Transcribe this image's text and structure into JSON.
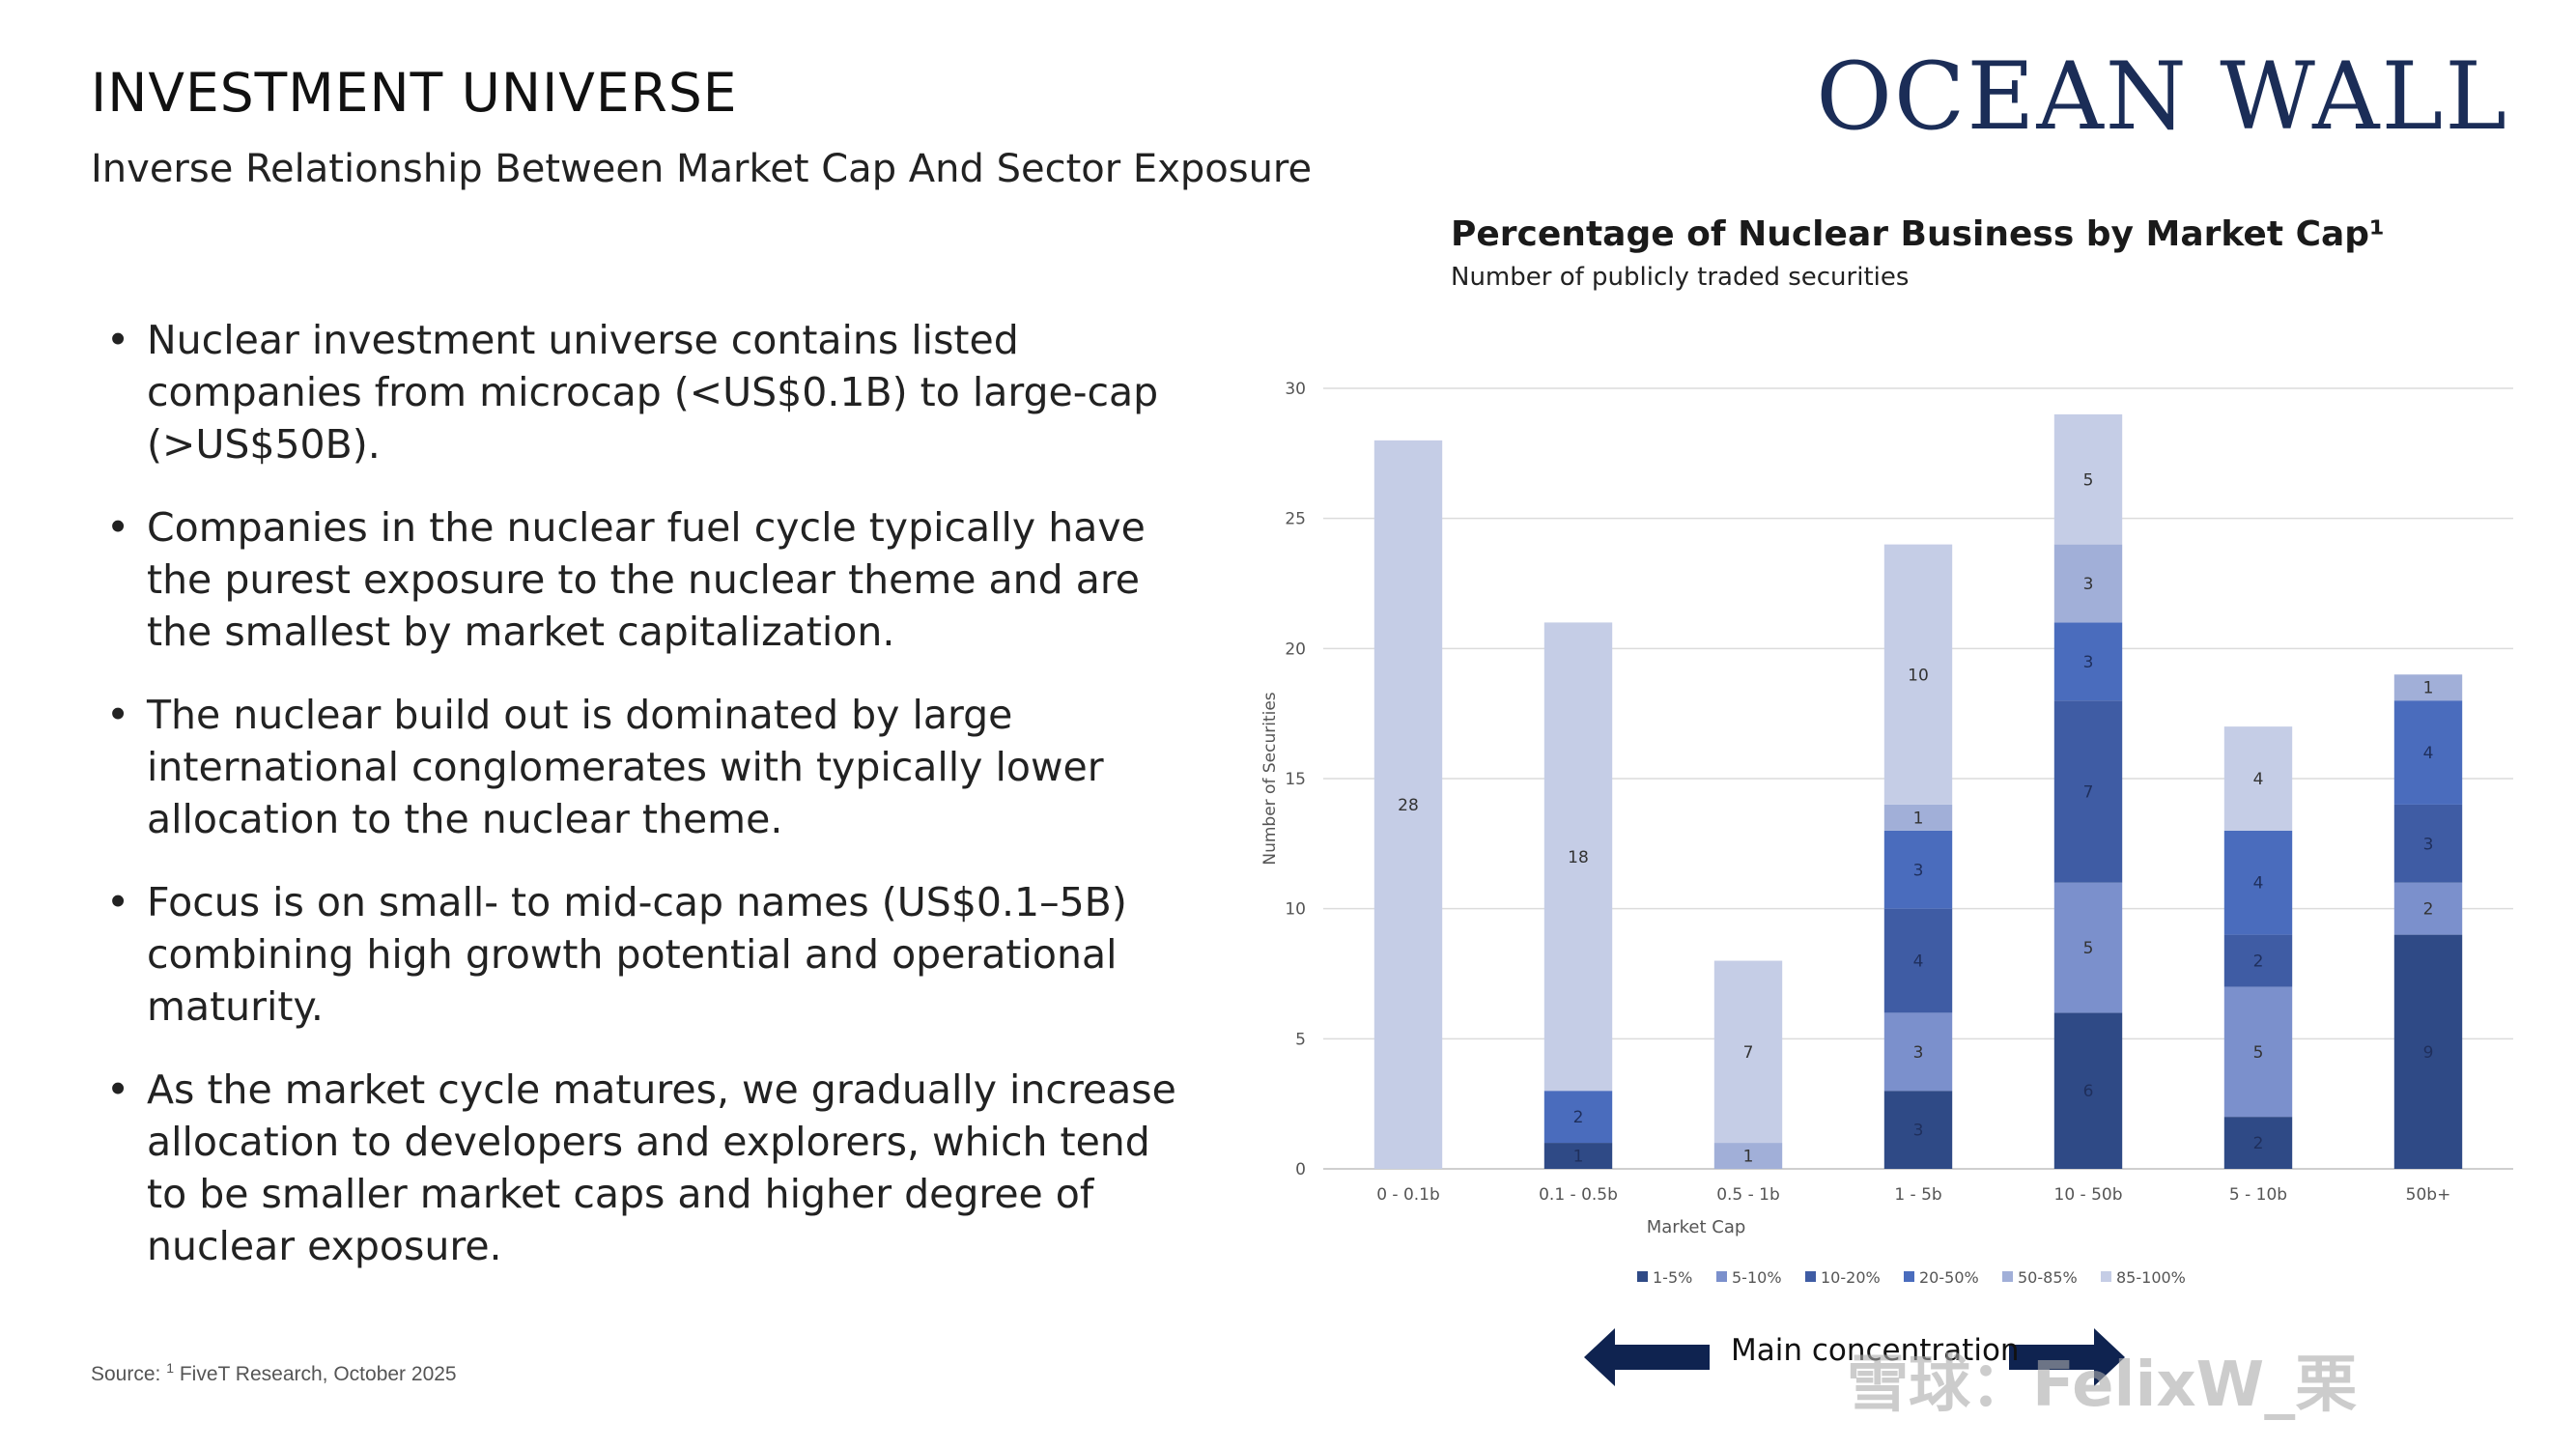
{
  "header": {
    "title": "INVESTMENT UNIVERSE",
    "subtitle": "Inverse Relationship Between Market Cap And Sector Exposure",
    "logo_text": "OCEAN WALL"
  },
  "bullets": [
    "Nuclear investment universe contains listed companies from microcap (<US$0.1B) to large-cap (>US$50B).",
    "Companies in the nuclear fuel cycle typically have the purest exposure to the nuclear theme and are the smallest by market capitalization.",
    "The nuclear build out is dominated by large international conglomerates with typically lower allocation to the nuclear theme.",
    "Focus is on small- to mid-cap names (US$0.1–5B) combining high growth potential and operational maturity.",
    "As the market cycle matures, we gradually increase allocation to developers and explorers, which tend to be smaller market caps and higher degree of nuclear exposure."
  ],
  "source": {
    "prefix": "Source: ",
    "sup": "1",
    "text": " FiveT Research, October 2025"
  },
  "footer": {
    "arrow_label": "Main concentration",
    "watermark": "雪球：FelixW_栗"
  },
  "colors": {
    "logo": "#1b2d57",
    "arrow": "#0f2350"
  },
  "chart_data": {
    "type": "bar",
    "stacked": true,
    "title": "Percentage of Nuclear Business by Market Cap¹",
    "subtitle": "Number of publicly traded securities",
    "xlabel": "Market Cap",
    "ylabel": "Number of Securities",
    "ylim": [
      0,
      30
    ],
    "yticks": [
      0,
      5,
      10,
      15,
      20,
      25,
      30
    ],
    "grid": true,
    "legend_position": "bottom",
    "categories": [
      "0 - 0.1b",
      "0.1 - 0.5b",
      "0.5 - 1b",
      "1 - 5b",
      "10 - 50b",
      "5 - 10b",
      "50b+"
    ],
    "series": [
      {
        "name": "1-5%",
        "color": "#2f4a86",
        "values": [
          0,
          1,
          0,
          3,
          6,
          2,
          9
        ]
      },
      {
        "name": "5-10%",
        "color": "#7b90cc",
        "values": [
          0,
          0,
          0,
          3,
          5,
          5,
          2
        ]
      },
      {
        "name": "10-20%",
        "color": "#3f5ca4",
        "values": [
          0,
          0,
          0,
          4,
          7,
          2,
          3
        ]
      },
      {
        "name": "20-50%",
        "color": "#4a6cbd",
        "values": [
          0,
          2,
          0,
          3,
          3,
          4,
          4
        ]
      },
      {
        "name": "50-85%",
        "color": "#a1afd8",
        "values": [
          0,
          0,
          1,
          1,
          3,
          0,
          1
        ]
      },
      {
        "name": "85-100%",
        "color": "#c5cde6",
        "values": [
          28,
          18,
          7,
          10,
          5,
          4,
          0
        ]
      }
    ]
  }
}
